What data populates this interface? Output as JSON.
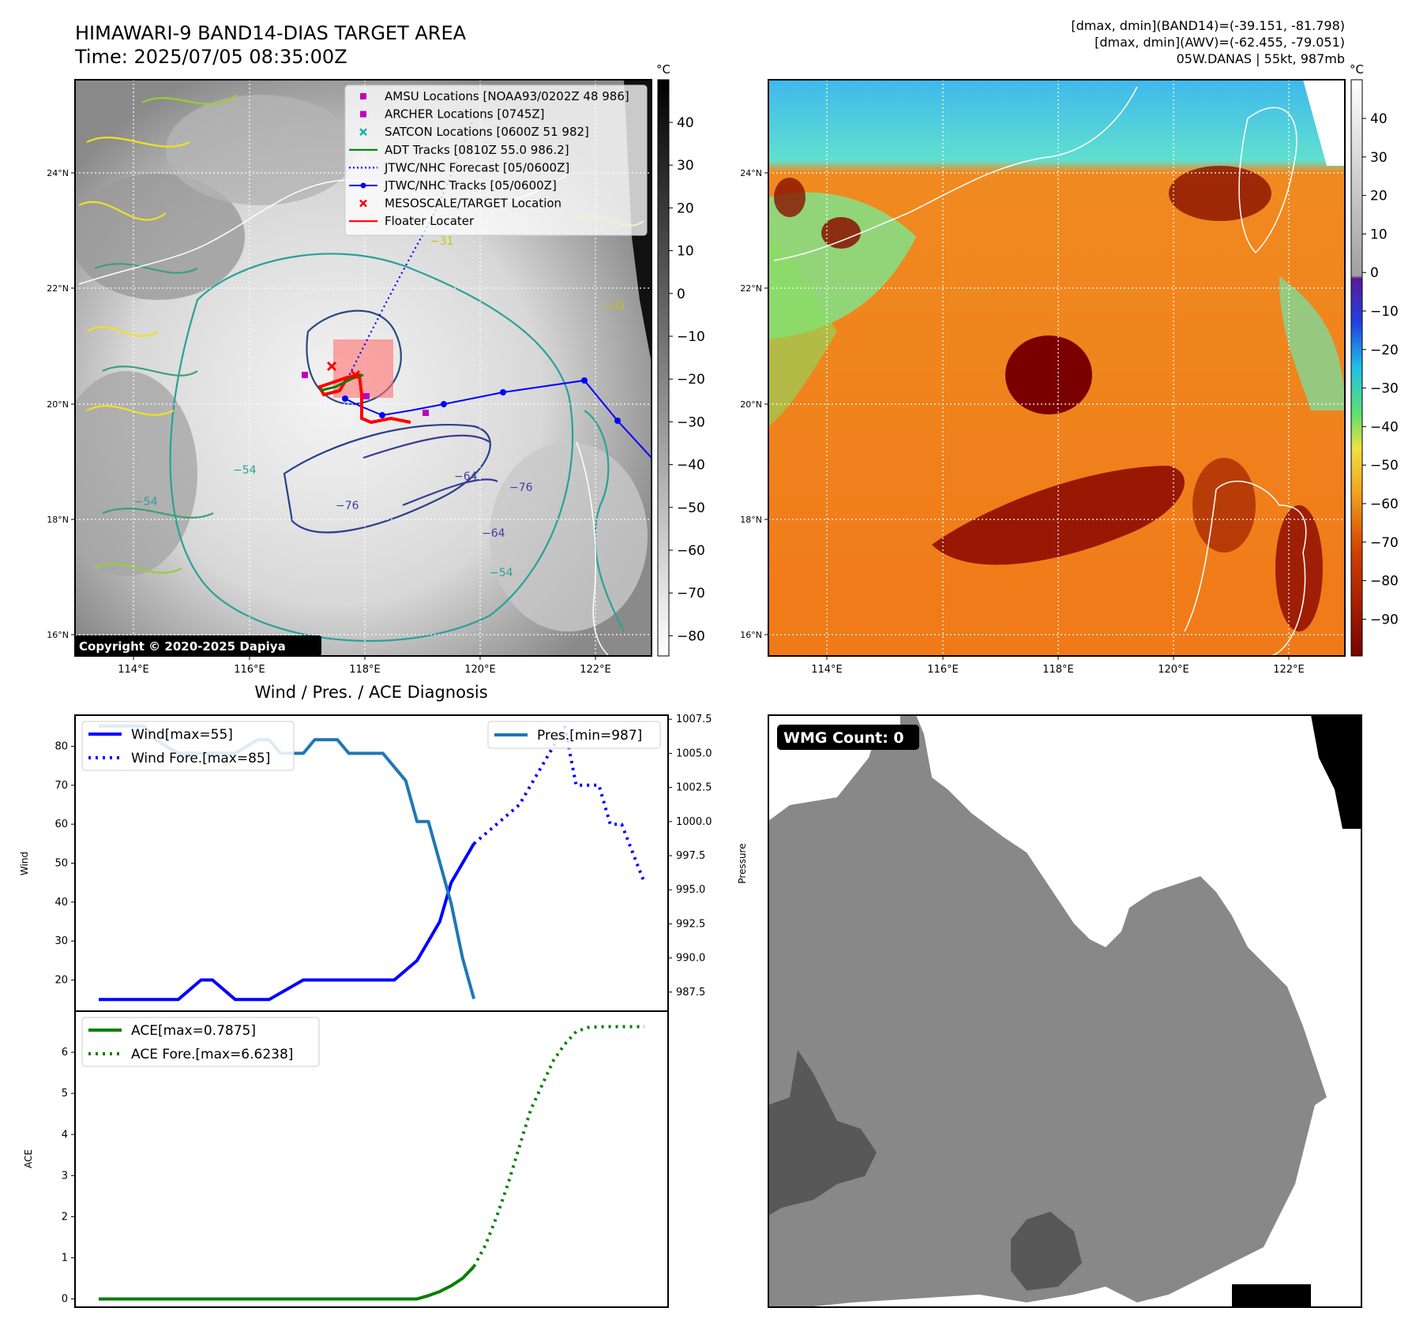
{
  "header": {
    "title": "HIMAWARI-9 BAND14-DIAS TARGET AREA",
    "time": "Time: 2025/07/05 08:35:00Z",
    "stats_band14": "[dmax, dmin](BAND14)=(-39.151, -81.798)",
    "stats_awv": "[dmax, dmin](AWV)=(-62.455, -79.051)",
    "storm": "05W.DANAS | 55kt, 987mb"
  },
  "map_ir": {
    "copyright": "Copyright © 2020-2025 Dapiya",
    "lon_ticks": [
      "114°E",
      "116°E",
      "118°E",
      "120°E",
      "122°E"
    ],
    "lat_ticks": [
      "24°N",
      "22°N",
      "20°N",
      "18°N",
      "16°N"
    ],
    "colorbar_unit": "°C",
    "colorbar_ticks": [
      "40",
      "30",
      "20",
      "10",
      "0",
      "−10",
      "−20",
      "−30",
      "−40",
      "−50",
      "−60",
      "−70",
      "−80"
    ],
    "legend": [
      {
        "label": "AMSU Locations [NOAA93/0202Z 48 986]",
        "color": "#c000c0",
        "marker": "square"
      },
      {
        "label": "ARCHER Locations [0745Z]",
        "color": "#c000c0",
        "marker": "square"
      },
      {
        "label": "SATCON Locations [0600Z 51 982]",
        "color": "#10b0b0",
        "marker": "x"
      },
      {
        "label": "ADT Tracks [0810Z 55.0 986.2]",
        "color": "#008000",
        "marker": "line"
      },
      {
        "label": "JTWC/NHC Forecast [05/0600Z]",
        "color": "#0000ff",
        "marker": "dotted"
      },
      {
        "label": "JTWC/NHC Tracks [05/0600Z]",
        "color": "#0000ff",
        "marker": "line-dot"
      },
      {
        "label": "MESOSCALE/TARGET Location",
        "color": "#ff0000",
        "marker": "x"
      },
      {
        "label": "Floater Locater",
        "color": "#ff0000",
        "marker": "line"
      }
    ],
    "contour_labels": [
      "−31",
      "−31",
      "−54",
      "−54",
      "−64",
      "−76",
      "−64",
      "−54",
      "−76"
    ]
  },
  "map_awv": {
    "lon_ticks": [
      "114°E",
      "116°E",
      "118°E",
      "120°E",
      "122°E"
    ],
    "lat_ticks": [
      "24°N",
      "22°N",
      "20°N",
      "18°N",
      "16°N"
    ],
    "colorbar_unit": "°C",
    "colorbar_ticks": [
      "40",
      "30",
      "20",
      "10",
      "0",
      "−10",
      "−20",
      "−30",
      "−40",
      "−50",
      "−60",
      "−70",
      "−80",
      "−90"
    ]
  },
  "wmg": {
    "label": "WMG Count: 0"
  },
  "chart_data": [
    {
      "type": "line",
      "title": "Wind / Pres. / ACE Diagnosis",
      "ylabel": "Wind",
      "ylabel_right": "Pressure",
      "ylim": [
        12,
        88
      ],
      "ylim_right": [
        986.1,
        1007.8
      ],
      "yticks": [
        20,
        30,
        40,
        50,
        60,
        70,
        80
      ],
      "yticks_right": [
        987.5,
        990.0,
        992.5,
        995.0,
        997.5,
        1000.0,
        1002.5,
        1005.0,
        1007.5
      ],
      "yticks_right_labels": [
        "987.5",
        "990.0",
        "992.5",
        "995.0",
        "997.5",
        "1000.0",
        "1002.5",
        "1005.0",
        "1007.5"
      ],
      "x_range": [
        0,
        48
      ],
      "legend_left": [
        "Wind[max=55]",
        "Wind Fore.[max=85]"
      ],
      "legend_right": [
        "Pres.[min=987]"
      ],
      "series": [
        {
          "name": "Wind[max=55]",
          "axis": "left",
          "style": "solid",
          "color": "#0000ff",
          "x": [
            0,
            4,
            7,
            9,
            10,
            12,
            14,
            15,
            18,
            19,
            25,
            26,
            28,
            29,
            30,
            31,
            33
          ],
          "y": [
            15,
            15,
            15,
            20,
            20,
            15,
            15,
            15,
            20,
            20,
            20,
            20,
            25,
            30,
            35,
            45,
            55
          ]
        },
        {
          "name": "Wind Fore.[max=85]",
          "axis": "left",
          "style": "dotted",
          "color": "#0000ff",
          "x": [
            33,
            35,
            37,
            38,
            39,
            40,
            41,
            42,
            44,
            45,
            46,
            48
          ],
          "y": [
            55,
            60,
            65,
            70,
            75,
            80,
            85,
            70,
            70,
            60,
            60,
            45
          ]
        },
        {
          "name": "Pres.[min=987]",
          "axis": "right",
          "style": "solid",
          "color": "#1f77b4",
          "x": [
            0,
            4,
            5,
            7,
            10,
            12,
            14,
            15,
            16,
            18,
            19,
            20,
            21,
            22,
            23,
            24,
            25,
            26,
            27,
            28,
            29,
            30,
            31,
            32,
            33
          ],
          "y": [
            1007.0,
            1007.0,
            1006.0,
            1005.0,
            1005.0,
            1005.0,
            1006.0,
            1006.0,
            1005.0,
            1005.0,
            1006.0,
            1006.0,
            1006.0,
            1005.0,
            1005.0,
            1005.0,
            1005.0,
            1004.0,
            1003.0,
            1000.0,
            1000.0,
            997.0,
            994.0,
            990.0,
            987.0
          ]
        }
      ]
    },
    {
      "type": "line",
      "ylabel": "ACE",
      "ylim": [
        -0.2,
        7.0
      ],
      "yticks": [
        0,
        1,
        2,
        3,
        4,
        5,
        6
      ],
      "x_range": [
        0,
        48
      ],
      "legend": [
        "ACE[max=0.7875]",
        "ACE Fore.[max=6.6238]"
      ],
      "series": [
        {
          "name": "ACE[max=0.7875]",
          "style": "solid",
          "color": "#008000",
          "x": [
            0,
            28,
            29,
            30,
            31,
            32,
            33
          ],
          "y": [
            0,
            0,
            0.08,
            0.18,
            0.32,
            0.5,
            0.7875
          ]
        },
        {
          "name": "ACE Fore.[max=6.6238]",
          "style": "dotted",
          "color": "#008000",
          "x": [
            33,
            34,
            35,
            36,
            37,
            38,
            39,
            40,
            41,
            42,
            43,
            44,
            45,
            48
          ],
          "y": [
            0.7875,
            1.3,
            2.0,
            2.8,
            3.7,
            4.6,
            5.2,
            5.8,
            6.2,
            6.5,
            6.6,
            6.62,
            6.6238,
            6.6238
          ]
        }
      ]
    }
  ]
}
